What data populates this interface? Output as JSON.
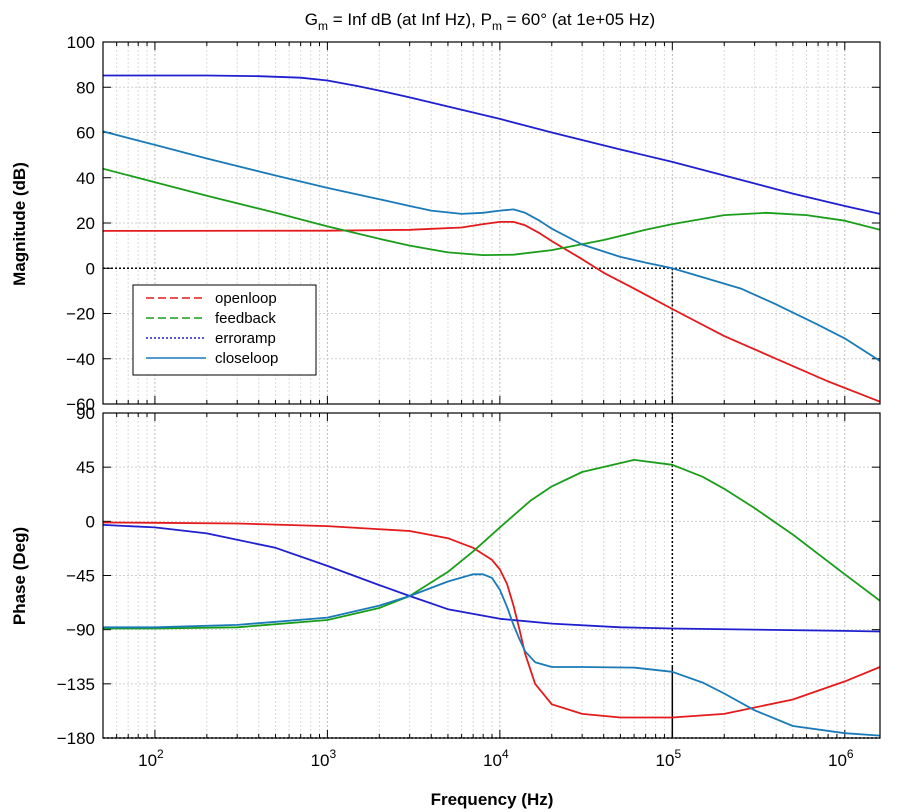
{
  "chart_data": {
    "type": "line",
    "title": {
      "gm_prefix": "G",
      "gm_sub": "m",
      "gm_rest": " = Inf dB (at Inf Hz), ",
      "pm_prefix": "P",
      "pm_sub": "m",
      "pm_rest": " = 60° (at 1e+05 Hz)"
    },
    "xlabel": "Frequency (Hz)",
    "x_scale": "log",
    "xlim": [
      50,
      1600000
    ],
    "x_ticks": [
      {
        "value": 100,
        "base": "10",
        "exp": "2"
      },
      {
        "value": 1000,
        "base": "10",
        "exp": "3"
      },
      {
        "value": 10000,
        "base": "10",
        "exp": "4"
      },
      {
        "value": 100000,
        "base": "10",
        "exp": "5"
      },
      {
        "value": 1000000,
        "base": "10",
        "exp": "6"
      }
    ],
    "grid": true,
    "crossover_frequency": 100000,
    "legend": {
      "placement": "lower-left of magnitude panel",
      "entries": [
        "openloop",
        "feedback",
        "erroramp",
        "closeloop"
      ]
    },
    "panels": [
      {
        "name": "magnitude",
        "ylabel": "Magnitude (dB)",
        "ylim": [
          -60,
          100
        ],
        "yticks": [
          100,
          80,
          60,
          40,
          20,
          0,
          -20,
          -40,
          -60
        ],
        "ytick_labels": [
          "100",
          "80",
          "60",
          "40",
          "20",
          "0",
          "−20",
          "−40",
          "−60"
        ],
        "reference_line": 0,
        "series": [
          {
            "name": "openloop",
            "color": "#e41a1c",
            "x": [
              50,
              100,
              1000,
              3000,
              6000,
              8000,
              10000,
              12000,
              14000,
              17000,
              20000,
              30000,
              40000,
              60000,
              100000,
              200000,
              400000,
              800000,
              1600000
            ],
            "y": [
              16.5,
              16.5,
              16.6,
              17,
              18,
              19.5,
              20.5,
              20.5,
              19,
              15.5,
              12,
              4,
              -2,
              -9,
              -18,
              -30,
              -40,
              -50,
              -59
            ]
          },
          {
            "name": "feedback",
            "color": "#1a9e1a",
            "x": [
              50,
              100,
              200,
              500,
              1000,
              2000,
              3000,
              5000,
              8000,
              12000,
              20000,
              40000,
              70000,
              100000,
              200000,
              350000,
              600000,
              1000000,
              1600000
            ],
            "y": [
              44,
              38,
              32,
              24.5,
              18.5,
              13,
              10,
              7,
              5.8,
              6,
              8,
              12.5,
              17,
              19.5,
              23.5,
              24.5,
              23.5,
              21,
              17
            ]
          },
          {
            "name": "erroramp",
            "color": "#1f1fd0",
            "x": [
              50,
              100,
              200,
              400,
              700,
              1000,
              1500,
              2000,
              3000,
              5000,
              10000,
              20000,
              50000,
              100000,
              200000,
              500000,
              1000000,
              1600000
            ],
            "y": [
              85.2,
              85.2,
              85.2,
              84.9,
              84.2,
              83,
              80.5,
              78.5,
              75.5,
              71.5,
              66,
              60,
              52.5,
              47,
              41,
              33,
              27.5,
              24
            ]
          },
          {
            "name": "closeloop",
            "color": "#1a7ab8",
            "x": [
              50,
              100,
              200,
              500,
              1000,
              2000,
              3000,
              4000,
              6000,
              8000,
              10000,
              12000,
              14000,
              17000,
              20000,
              30000,
              50000,
              70000,
              100000,
              150000,
              250000,
              400000,
              700000,
              1000000,
              1600000
            ],
            "y": [
              60.5,
              54.5,
              48.5,
              41,
              35.5,
              30.5,
              27.5,
              25.5,
              24,
              24.5,
              25.5,
              26,
              24.5,
              21,
              17.5,
              10.5,
              5,
              2.5,
              0,
              -4,
              -9,
              -16,
              -25,
              -31,
              -41
            ]
          }
        ]
      },
      {
        "name": "phase",
        "ylabel": "Phase (Deg)",
        "ylim": [
          -180,
          90
        ],
        "yticks": [
          90,
          45,
          0,
          -45,
          -90,
          -135,
          -180
        ],
        "ytick_labels": [
          "90",
          "45",
          "0",
          "−45",
          "−90",
          "−135",
          "−180"
        ],
        "reference_line": -180,
        "series": [
          {
            "name": "openloop",
            "color": "#e41a1c",
            "x": [
              50,
              100,
              300,
              1000,
              3000,
              5000,
              7000,
              9000,
              10000,
              11000,
              12000,
              13000,
              14000,
              16000,
              20000,
              30000,
              50000,
              100000,
              200000,
              500000,
              1000000,
              1600000
            ],
            "y": [
              -1,
              -1.2,
              -1.8,
              -4,
              -8,
              -14,
              -22,
              -32,
              -40,
              -52,
              -70,
              -90,
              -110,
              -135,
              -152,
              -160,
              -163,
              -163,
              -160,
              -148,
              -133,
              -121
            ]
          },
          {
            "name": "feedback",
            "color": "#1a9e1a",
            "x": [
              50,
              100,
              300,
              1000,
              2000,
              3000,
              5000,
              7000,
              10000,
              15000,
              20000,
              30000,
              60000,
              100000,
              150000,
              200000,
              300000,
              500000,
              1000000,
              1600000
            ],
            "y": [
              -89,
              -89,
              -88,
              -82,
              -72,
              -62,
              -42,
              -25,
              -5,
              17,
              29,
              41,
              51,
              47,
              37,
              27,
              11,
              -11,
              -44,
              -66
            ]
          },
          {
            "name": "erroramp",
            "color": "#1f1fd0",
            "x": [
              50,
              100,
              200,
              500,
              1000,
              2000,
              3000,
              5000,
              10000,
              20000,
              50000,
              100000,
              1000000,
              1600000
            ],
            "y": [
              -3,
              -5,
              -10,
              -22,
              -37,
              -53,
              -62,
              -73,
              -81,
              -85,
              -88,
              -89,
              -91,
              -91.5
            ]
          },
          {
            "name": "closeloop",
            "color": "#1a7ab8",
            "x": [
              50,
              100,
              300,
              1000,
              2000,
              3000,
              5000,
              7000,
              8000,
              9000,
              10000,
              11000,
              12000,
              13000,
              14000,
              16000,
              20000,
              30000,
              60000,
              100000,
              150000,
              200000,
              300000,
              500000,
              1000000,
              1600000
            ],
            "y": [
              -88,
              -88,
              -86,
              -80,
              -70,
              -62,
              -50,
              -44,
              -44,
              -47,
              -57,
              -71,
              -86,
              -98,
              -108,
              -117,
              -121,
              -121,
              -121.5,
              -125,
              -134,
              -143,
              -157,
              -170,
              -176,
              -178
            ]
          }
        ]
      }
    ]
  }
}
